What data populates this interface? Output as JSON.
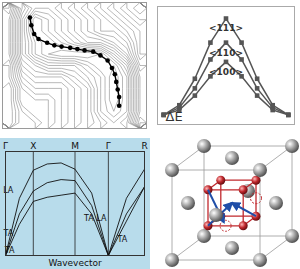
{
  "chart_data": [
    {
      "type": "contour",
      "xlim": [
        0,
        10
      ],
      "ylim": [
        0,
        10
      ],
      "tick_labels": false,
      "cells": [
        [
          9,
          5,
          3,
          3,
          4,
          5,
          6,
          7,
          8,
          9,
          10
        ],
        [
          8,
          4,
          1,
          2,
          3,
          4,
          5,
          6,
          7,
          8,
          9
        ],
        [
          8,
          4,
          1,
          2,
          3,
          4,
          5,
          6,
          6,
          7,
          8
        ],
        [
          8,
          4,
          2,
          1,
          2,
          3,
          4,
          4,
          5,
          6,
          8
        ],
        [
          8,
          4,
          2,
          1,
          0.5,
          0.5,
          0.5,
          1,
          3,
          5,
          8
        ],
        [
          9,
          5,
          4,
          3,
          3,
          3,
          2,
          1,
          1,
          3,
          7
        ],
        [
          9,
          6,
          5,
          5,
          5,
          4,
          3,
          2,
          0.5,
          2,
          6
        ],
        [
          10,
          7,
          6,
          6,
          6,
          5,
          4,
          2,
          0.5,
          2,
          6
        ],
        [
          10,
          7,
          7,
          7,
          6,
          5,
          4,
          2,
          0.5,
          2,
          6
        ],
        [
          10,
          8,
          7,
          7,
          6,
          5,
          4,
          2,
          1,
          2,
          6
        ],
        [
          10,
          8,
          8,
          7,
          6,
          5,
          4,
          3,
          2,
          3,
          7
        ]
      ],
      "path": {
        "x": [
          1.9,
          2.0,
          2.2,
          2.5,
          3.1,
          3.6,
          4.1,
          4.7,
          5.2,
          5.7,
          6.3,
          6.8,
          7.3,
          7.6,
          7.8,
          7.9,
          8.0,
          8.1,
          8.1
        ],
        "y": [
          8.8,
          8.2,
          7.5,
          7.1,
          6.8,
          6.6,
          6.5,
          6.4,
          6.3,
          6.2,
          6.1,
          5.8,
          5.4,
          4.8,
          4.3,
          3.7,
          3.1,
          2.5,
          1.8
        ]
      }
    },
    {
      "type": "line",
      "x": [
        0,
        1,
        2,
        3,
        4,
        5,
        6,
        7,
        8
      ],
      "xlim": [
        -0.4,
        8.4
      ],
      "ylim": [
        -0.4,
        4.5
      ],
      "tick_labels": false,
      "marker": "square",
      "color": "#555555",
      "series": [
        {
          "name": "<111>",
          "values": [
            0,
            0.4,
            1.5,
            3.0,
            4.0,
            3.0,
            1.5,
            0.4,
            0
          ]
        },
        {
          "name": "<110>",
          "values": [
            0,
            0.3,
            1.1,
            2.3,
            3.0,
            2.3,
            1.1,
            0.3,
            0
          ]
        },
        {
          "name": "<100>",
          "values": [
            0,
            0.2,
            0.8,
            1.6,
            2.2,
            1.6,
            0.8,
            0.2,
            0
          ]
        }
      ],
      "annotations": [
        {
          "text": "ΔE"
        }
      ]
    },
    {
      "type": "line",
      "xlabel": "Wavevector",
      "x": [
        0,
        0.5,
        1,
        1.5,
        2,
        2.5,
        3.1,
        3.7,
        4.35,
        5
      ],
      "xlim": [
        0,
        5
      ],
      "ylim": [
        0,
        10
      ],
      "xticks": [
        {
          "value": 0,
          "label": "Γ"
        },
        {
          "value": 1,
          "label": "X"
        },
        {
          "value": 2.5,
          "label": "M"
        },
        {
          "value": 3.7,
          "label": "Γ"
        },
        {
          "value": 5,
          "label": "R"
        }
      ],
      "grid": true,
      "tick_labels": "x",
      "color": "#111111",
      "series": [
        {
          "values": [
            0,
            5.5,
            8.2,
            8.8,
            8.9,
            8.3,
            6,
            0,
            5.5,
            8.3
          ]
        },
        {
          "values": [
            0,
            4,
            6.2,
            7,
            7.3,
            7.2,
            4.8,
            0,
            4,
            6.6
          ]
        },
        {
          "values": [
            0,
            3,
            5.2,
            5.6,
            5.8,
            6,
            4,
            0,
            3.3,
            6.6
          ]
        }
      ],
      "annotations": [
        {
          "text": "LA",
          "x": 0.1,
          "y": 6.3
        },
        {
          "text": "TA",
          "x": 0.1,
          "y": 2.1
        },
        {
          "text": "TA",
          "x": 0.15,
          "y": 0.5
        },
        {
          "text": "TA",
          "x": 3.0,
          "y": 3.6
        },
        {
          "text": "LA",
          "x": 3.45,
          "y": 3.6
        },
        {
          "text": "TA",
          "x": 4.2,
          "y": 1.5
        }
      ]
    },
    {
      "type": "diagram"
    }
  ]
}
